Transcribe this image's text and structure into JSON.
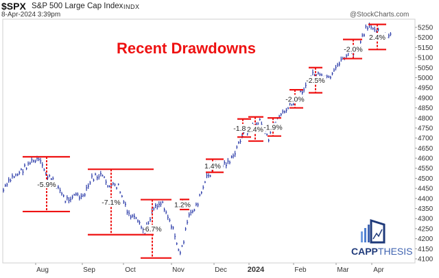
{
  "header": {
    "symbol": "$SPX",
    "name": "S&P 500 Large Cap Index",
    "exchange": "INDX",
    "date": "8-Apr-2024 3:39pm",
    "credit": "@StockCharts.com"
  },
  "annotation_title": "Recent Drawdowns",
  "watermark": {
    "brand_bold": "CAPP",
    "brand_light": "THESIS"
  },
  "colors": {
    "price": "#2a3aa8",
    "drawdown": "#ee1111",
    "title": "#ee1111",
    "axis": "#cfcfcf",
    "brand": "#1f3a7a",
    "brand_light": "#3f63b0"
  },
  "chart_data": {
    "type": "line",
    "title": "Recent Drawdowns",
    "subtitle": "$SPX S&P 500 Large Cap Index INDX",
    "xlabel": "",
    "ylabel": "",
    "ylim": [
      4100,
      5250
    ],
    "yticks": [
      5250,
      5200,
      5150,
      5100,
      5050,
      5000,
      4950,
      4900,
      4850,
      4800,
      4750,
      4700,
      4650,
      4600,
      4550,
      4500,
      4450,
      4400,
      4350,
      4300,
      4250,
      4200,
      4150,
      4100
    ],
    "xticks": [
      "Aug",
      "Sep",
      "Oct",
      "Nov",
      "Dec",
      "2024",
      "Feb",
      "Mar",
      "Apr"
    ],
    "grid": false,
    "legend": "none",
    "series": [
      {
        "name": "$SPX",
        "x": [
          "Jul-10",
          "Jul-14",
          "Jul-19",
          "Jul-24",
          "Jul-31",
          "Aug-04",
          "Aug-09",
          "Aug-14",
          "Aug-18",
          "Aug-24",
          "Aug-29",
          "Sep-01",
          "Sep-08",
          "Sep-14",
          "Sep-20",
          "Sep-27",
          "Oct-03",
          "Oct-10",
          "Oct-16",
          "Oct-20",
          "Oct-27",
          "Nov-02",
          "Nov-08",
          "Nov-15",
          "Nov-22",
          "Nov-30",
          "Dec-07",
          "Dec-14",
          "Dec-21",
          "Dec-28",
          "Jan-05",
          "Jan-12",
          "Jan-19",
          "Jan-26",
          "Feb-02",
          "Feb-09",
          "Feb-16",
          "Feb-21",
          "Feb-28",
          "Mar-07",
          "Mar-14",
          "Mar-21",
          "Mar-28",
          "Apr-01",
          "Apr-08"
        ],
        "values": [
          4440,
          4505,
          4535,
          4580,
          4590,
          4510,
          4470,
          4390,
          4420,
          4400,
          4500,
          4515,
          4460,
          4460,
          4330,
          4290,
          4230,
          4360,
          4380,
          4270,
          4120,
          4310,
          4380,
          4500,
          4560,
          4570,
          4600,
          4720,
          4750,
          4780,
          4700,
          4800,
          4840,
          4880,
          4950,
          5020,
          5000,
          4990,
          5080,
          5120,
          5130,
          5240,
          5255,
          5200,
          5205
        ]
      }
    ],
    "drawdowns": [
      {
        "label": "-5.9%",
        "peak": 4607,
        "trough": 4335
      },
      {
        "label": "-7.1%",
        "peak": 4545,
        "trough": 4220
      },
      {
        "label": "-6.7%",
        "peak": 4394,
        "trough": 4104
      },
      {
        "label": "1.2%",
        "peak": 4395,
        "trough": 4345
      },
      {
        "label": "1.4%",
        "peak": 4595,
        "trough": 4530
      },
      {
        "label": "-1.8%",
        "peak": 4795,
        "trough": 4705
      },
      {
        "label": "2.4%",
        "peak": 4805,
        "trough": 4685
      },
      {
        "label": "-1.9%",
        "peak": 4800,
        "trough": 4710
      },
      {
        "label": "-2.0%",
        "peak": 4940,
        "trough": 4850
      },
      {
        "label": "-2.5%",
        "peak": 5050,
        "trough": 4925
      },
      {
        "label": "-2.0%",
        "peak": 5190,
        "trough": 5095
      },
      {
        "label": "2.4%",
        "peak": 5265,
        "trough": 5140
      }
    ]
  }
}
